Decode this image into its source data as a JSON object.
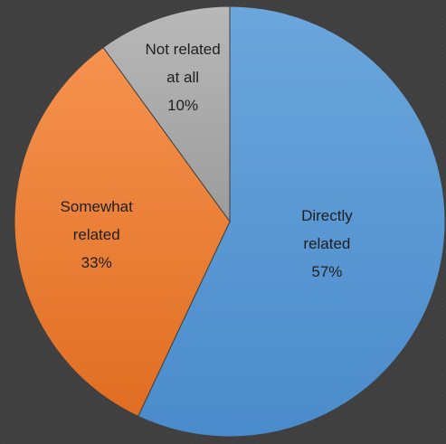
{
  "chart_data": {
    "type": "pie",
    "title": "",
    "slices": [
      {
        "label_lines": [
          "Directly",
          "related"
        ],
        "value": 57,
        "display": "57%",
        "color": "#5B9BD5",
        "text_color": "#1f1f1f"
      },
      {
        "label_lines": [
          "Somewhat",
          "related"
        ],
        "value": 33,
        "display": "33%",
        "color": "#ED7D31",
        "text_color": "#1f1f1f"
      },
      {
        "label_lines": [
          "Not related",
          "at all"
        ],
        "value": 10,
        "display": "10%",
        "color": "#A5A5A5",
        "text_color": "#1f1f1f"
      }
    ],
    "start_angle": "12 o'clock",
    "direction": "clockwise",
    "legend": "none"
  }
}
